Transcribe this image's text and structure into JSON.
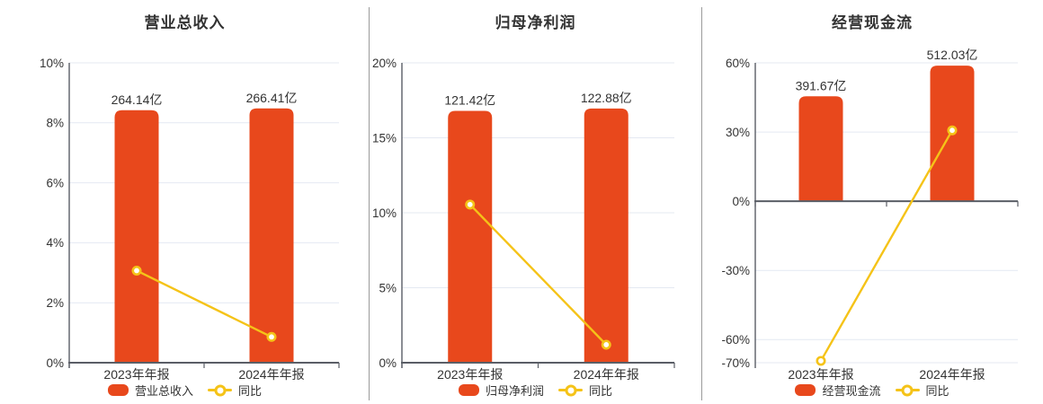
{
  "colors": {
    "bar": "#e8481c",
    "line": "#f5c318",
    "grid": "#e4e9f2",
    "axis": "#5a5e66",
    "text": "#333333",
    "divider": "#9b9b9b",
    "background": "#ffffff"
  },
  "chart_data": [
    {
      "type": "bar",
      "title": "营业总收入",
      "categories": [
        "2023年年报",
        "2024年年报"
      ],
      "legend": [
        "营业总收入",
        "同比"
      ],
      "legend_position": "bottom",
      "grid": true,
      "y_axis": {
        "min": 0,
        "max": 10,
        "tick_values": [
          0,
          2,
          4,
          6,
          8,
          10
        ],
        "tick_labels": [
          "0%",
          "2%",
          "4%",
          "6%",
          "8%",
          "10%"
        ]
      },
      "series": [
        {
          "name": "营业总收入",
          "type": "bar",
          "unit": "亿",
          "values": [
            264.14,
            266.41
          ],
          "value_labels": [
            "264.14亿",
            "266.41亿"
          ],
          "bar_top_axis_pct": [
            8.42,
            8.48
          ]
        },
        {
          "name": "同比",
          "type": "line",
          "unit": "%",
          "values": [
            3.07,
            0.86
          ]
        }
      ]
    },
    {
      "type": "bar",
      "title": "归母净利润",
      "categories": [
        "2023年年报",
        "2024年年报"
      ],
      "legend": [
        "归母净利润",
        "同比"
      ],
      "legend_position": "bottom",
      "grid": true,
      "y_axis": {
        "min": 0,
        "max": 20,
        "tick_values": [
          0,
          5,
          10,
          15,
          20
        ],
        "tick_labels": [
          "0%",
          "5%",
          "10%",
          "15%",
          "20%"
        ]
      },
      "series": [
        {
          "name": "归母净利润",
          "type": "bar",
          "unit": "亿",
          "values": [
            121.42,
            122.88
          ],
          "value_labels": [
            "121.42亿",
            "122.88亿"
          ],
          "bar_top_axis_pct": [
            16.8,
            16.95
          ]
        },
        {
          "name": "同比",
          "type": "line",
          "unit": "%",
          "values": [
            10.55,
            1.2
          ]
        }
      ]
    },
    {
      "type": "bar",
      "title": "经营现金流",
      "categories": [
        "2023年年报",
        "2024年年报"
      ],
      "legend": [
        "经营现金流",
        "同比"
      ],
      "legend_position": "bottom",
      "grid": true,
      "y_axis": {
        "min": -70,
        "max": 60,
        "tick_values": [
          -70,
          -60,
          -30,
          0,
          30,
          60
        ],
        "tick_labels": [
          "-70%",
          "-60%",
          "-30%",
          "0%",
          "30%",
          "60%"
        ]
      },
      "series": [
        {
          "name": "经营现金流",
          "type": "bar",
          "unit": "亿",
          "values": [
            391.67,
            512.03
          ],
          "value_labels": [
            "391.67亿",
            "512.03亿"
          ],
          "bar_top_axis_pct": [
            45.5,
            58.8
          ]
        },
        {
          "name": "同比",
          "type": "line",
          "unit": "%",
          "values": [
            -69.2,
            30.73
          ]
        }
      ]
    }
  ]
}
